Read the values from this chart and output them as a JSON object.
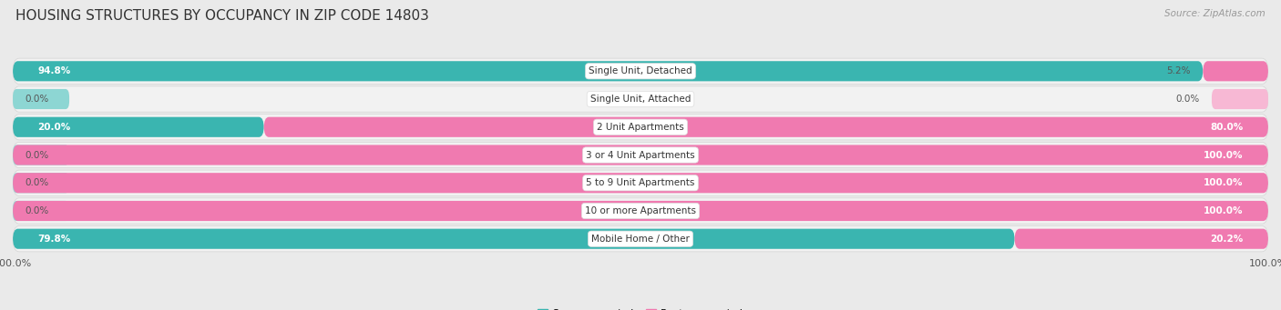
{
  "title": "HOUSING STRUCTURES BY OCCUPANCY IN ZIP CODE 14803",
  "source": "Source: ZipAtlas.com",
  "categories": [
    "Single Unit, Detached",
    "Single Unit, Attached",
    "2 Unit Apartments",
    "3 or 4 Unit Apartments",
    "5 to 9 Unit Apartments",
    "10 or more Apartments",
    "Mobile Home / Other"
  ],
  "owner_pct": [
    94.8,
    0.0,
    20.0,
    0.0,
    0.0,
    0.0,
    79.8
  ],
  "renter_pct": [
    5.2,
    0.0,
    80.0,
    100.0,
    100.0,
    100.0,
    20.2
  ],
  "owner_color": "#3ab5b0",
  "renter_color": "#f07ab0",
  "owner_stub_color": "#8dd6d3",
  "renter_stub_color": "#f7b8d4",
  "background_color": "#eaeaea",
  "row_bg_color": "#f2f2f2",
  "row_border_color": "#d5d5d5",
  "title_fontsize": 11,
  "label_fontsize": 7.5,
  "source_fontsize": 7.5,
  "legend_fontsize": 8,
  "axis_label_fontsize": 8,
  "pct_fontsize": 7.5
}
